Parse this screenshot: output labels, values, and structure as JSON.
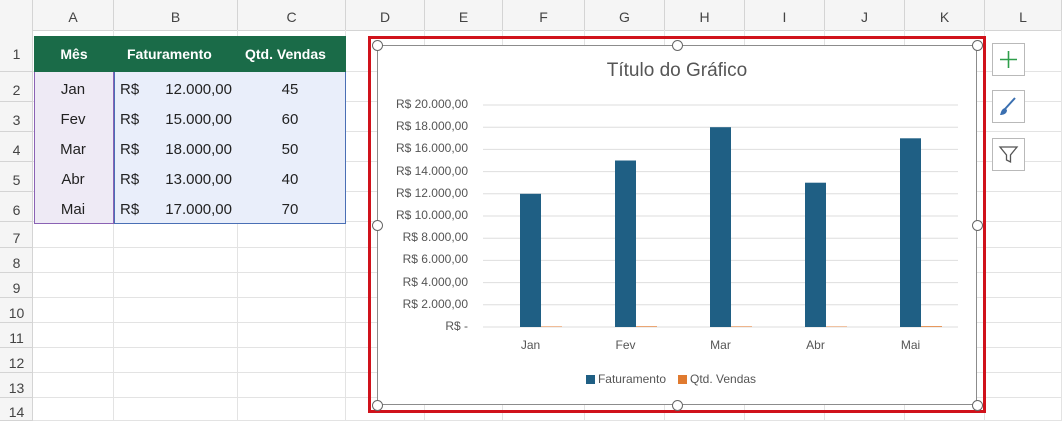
{
  "columns": [
    "A",
    "B",
    "C",
    "D",
    "E",
    "F",
    "G",
    "H",
    "I",
    "J",
    "K",
    "L"
  ],
  "rows": [
    "1",
    "2",
    "3",
    "4",
    "5",
    "6",
    "7",
    "8",
    "9",
    "10",
    "11",
    "12",
    "13",
    "14"
  ],
  "table": {
    "headers": [
      "Mês",
      "Faturamento",
      "Qtd. Vendas"
    ],
    "currency": "R$",
    "rows": [
      {
        "mes": "Jan",
        "faturamento": "12.000,00",
        "vendas": "45"
      },
      {
        "mes": "Fev",
        "faturamento": "15.000,00",
        "vendas": "60"
      },
      {
        "mes": "Mar",
        "faturamento": "18.000,00",
        "vendas": "50"
      },
      {
        "mes": "Abr",
        "faturamento": "13.000,00",
        "vendas": "40"
      },
      {
        "mes": "Mai",
        "faturamento": "17.000,00",
        "vendas": "70"
      }
    ]
  },
  "colors": {
    "header_green": "#1a6b48",
    "bar_blue": "#1f5f84",
    "orange": "#e07a2f",
    "selection_red": "#d0121b"
  },
  "side_buttons": [
    "plus-icon",
    "brush-icon",
    "filter-icon"
  ],
  "chart_data": {
    "type": "bar",
    "title": "Título do Gráfico",
    "categories": [
      "Jan",
      "Fev",
      "Mar",
      "Abr",
      "Mai"
    ],
    "series": [
      {
        "name": "Faturamento",
        "values": [
          12000,
          15000,
          18000,
          13000,
          17000
        ],
        "color": "#1f5f84"
      },
      {
        "name": "Qtd. Vendas",
        "values": [
          45,
          60,
          50,
          40,
          70
        ],
        "color": "#e07a2f"
      }
    ],
    "ylim": [
      0,
      20000
    ],
    "yticks": [
      "R$ -",
      "R$ 2.000,00",
      "R$ 4.000,00",
      "R$ 6.000,00",
      "R$ 8.000,00",
      "R$ 10.000,00",
      "R$ 12.000,00",
      "R$ 14.000,00",
      "R$ 16.000,00",
      "R$ 18.000,00",
      "R$ 20.000,00"
    ],
    "legend": "bottom",
    "grid": true
  }
}
